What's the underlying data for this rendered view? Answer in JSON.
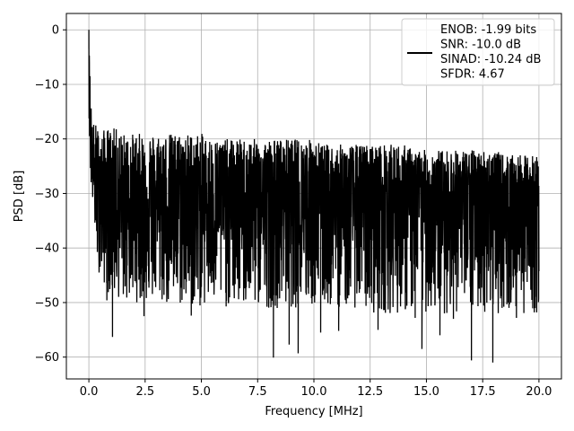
{
  "chart_data": {
    "type": "line",
    "title": "",
    "xlabel": "Frequency [MHz]",
    "ylabel": "PSD [dB]",
    "xlim": [
      -1.0,
      21.0
    ],
    "ylim": [
      -64.0,
      3.0
    ],
    "xticks": [
      0.0,
      2.5,
      5.0,
      7.5,
      10.0,
      12.5,
      15.0,
      17.5,
      20.0
    ],
    "xtick_labels": [
      "0.0",
      "2.5",
      "5.0",
      "7.5",
      "10.0",
      "12.5",
      "15.0",
      "17.5",
      "20.0"
    ],
    "yticks": [
      0,
      -10,
      -20,
      -30,
      -40,
      -50,
      -60
    ],
    "ytick_labels": [
      "0",
      "−10",
      "−20",
      "−30",
      "−40",
      "−50",
      "−60"
    ],
    "grid": true,
    "legend_position": "top-right",
    "legend_lines": [
      "ENOB: -1.99 bits",
      "SNR: -10.0 dB",
      "SINAD: -10.24 dB",
      "SFDR: 4.67"
    ],
    "series": [
      {
        "color": "#000000",
        "x": [
          0.0,
          0.02,
          0.04,
          0.06,
          0.08,
          0.1,
          0.12,
          0.15,
          0.2,
          0.25,
          0.3,
          0.35,
          0.4,
          0.5,
          0.6,
          0.7,
          0.8,
          1.0,
          1.2,
          1.5,
          2.0,
          2.5,
          3.0,
          3.5,
          4.0,
          4.5,
          5.0,
          5.5,
          6.0,
          6.5,
          7.0,
          7.5,
          8.0,
          8.5,
          9.0,
          9.5,
          10.0,
          10.5,
          11.0,
          11.5,
          12.0,
          12.5,
          13.0,
          13.5,
          14.0,
          14.5,
          15.0,
          15.5,
          16.0,
          16.5,
          17.0,
          17.5,
          18.0,
          18.5,
          19.0,
          19.5,
          20.0
        ],
        "upper": [
          0,
          -5,
          -10,
          -14,
          -16,
          -17,
          -17,
          -17,
          -17,
          -17,
          -17,
          -18,
          -18,
          -19,
          -19,
          -18,
          -18,
          -18,
          -18,
          -19,
          -19,
          -19,
          -19,
          -19,
          -19,
          -19,
          -19,
          -20,
          -20,
          -20,
          -20,
          -20,
          -20,
          -20,
          -20,
          -20,
          -20,
          -21,
          -21,
          -21,
          -21,
          -21,
          -21,
          -21,
          -21,
          -22,
          -22,
          -22,
          -22,
          -22,
          -22,
          -22,
          -22,
          -23,
          -23,
          -23,
          -23
        ],
        "lower": [
          -14,
          -20,
          -24,
          -26,
          -28,
          -29,
          -30,
          -31,
          -33,
          -36,
          -39,
          -42,
          -44,
          -45,
          -46,
          -47,
          -48,
          -49,
          -49,
          -50,
          -50,
          -50,
          -50,
          -51,
          -51,
          -51,
          -51,
          -51,
          -51,
          -51,
          -51,
          -51,
          -51,
          -51,
          -51,
          -51,
          -51,
          -51,
          -51,
          -51,
          -51,
          -52,
          -52,
          -52,
          -52,
          -52,
          -52,
          -52,
          -52,
          -52,
          -52,
          -52,
          -52,
          -52,
          -52,
          -52,
          -52
        ],
        "center": [
          -1,
          -8,
          -13,
          -18,
          -21,
          -23,
          -25,
          -26,
          -27,
          -28,
          -29,
          -30,
          -31,
          -31,
          -32,
          -32,
          -32,
          -32,
          -32,
          -32,
          -32,
          -32,
          -32,
          -32,
          -32,
          -32,
          -32,
          -32,
          -32,
          -32,
          -32,
          -32,
          -32,
          -32,
          -32,
          -32,
          -32,
          -32,
          -32,
          -32,
          -32,
          -32,
          -32,
          -32,
          -32,
          -32,
          -32,
          -32,
          -32,
          -32,
          -32,
          -32,
          -32,
          -32,
          -32,
          -32,
          -32
        ],
        "deep_dips": [
          {
            "x": 0.8,
            "y": -49.6
          },
          {
            "x": 1.05,
            "y": -56.3
          },
          {
            "x": 2.45,
            "y": -52.5
          },
          {
            "x": 4.55,
            "y": -52.4
          },
          {
            "x": 8.2,
            "y": -60.1
          },
          {
            "x": 8.9,
            "y": -57.7
          },
          {
            "x": 9.3,
            "y": -59.3
          },
          {
            "x": 10.3,
            "y": -55.5
          },
          {
            "x": 11.1,
            "y": -55.2
          },
          {
            "x": 12.85,
            "y": -55.0
          },
          {
            "x": 13.85,
            "y": -50.7
          },
          {
            "x": 14.5,
            "y": -52.8
          },
          {
            "x": 14.8,
            "y": -58.5
          },
          {
            "x": 15.6,
            "y": -56.0
          },
          {
            "x": 16.2,
            "y": -53.0
          },
          {
            "x": 17.0,
            "y": -60.6
          },
          {
            "x": 17.95,
            "y": -61.0
          },
          {
            "x": 19.0,
            "y": -52.8
          },
          {
            "x": 19.9,
            "y": -51.8
          }
        ],
        "peak_spikes": [
          {
            "x": 0.0,
            "y": 0.0
          },
          {
            "x": 0.02,
            "y": -4.7
          },
          {
            "x": 0.05,
            "y": -8.5
          },
          {
            "x": 0.1,
            "y": -14.4
          }
        ]
      }
    ]
  }
}
